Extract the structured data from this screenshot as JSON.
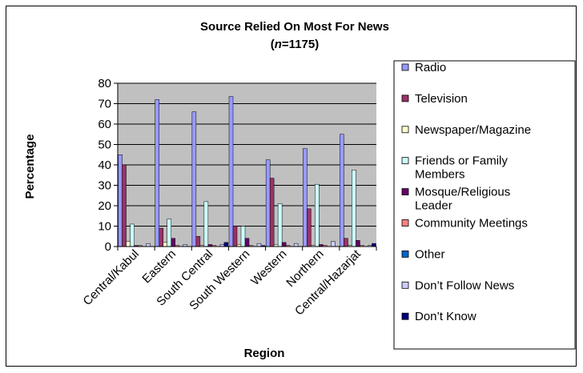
{
  "chart_data": {
    "type": "bar",
    "title": "Source Relied On Most For News",
    "subtitle_prefix": "n",
    "subtitle_suffix": "=1175",
    "xlabel": "Region",
    "ylabel": "Percentage",
    "ylim": [
      0,
      80
    ],
    "yticks": [
      0,
      10,
      20,
      30,
      40,
      50,
      60,
      70,
      80
    ],
    "grid": true,
    "legend_position": "right",
    "categories": [
      "Central/Kabul",
      "Eastern",
      "South Central",
      "South Western",
      "Western",
      "Northern",
      "Central/Hazarjat"
    ],
    "series": [
      {
        "name": "Radio",
        "color": "#9999ff",
        "values": [
          45,
          72,
          66,
          73.5,
          42.5,
          48,
          55
        ]
      },
      {
        "name": "Television",
        "color": "#993366",
        "values": [
          40,
          9,
          5,
          10,
          33.5,
          18.5,
          4
        ]
      },
      {
        "name": "Newspaper/Magazine",
        "color": "#ffffcc",
        "values": [
          2.5,
          2,
          0.5,
          1,
          1,
          0.5,
          0.5
        ]
      },
      {
        "name": "Friends or Family Members",
        "color": "#ccffff",
        "values": [
          11,
          13.5,
          22,
          10,
          21,
          30.5,
          37.5
        ]
      },
      {
        "name": "Mosque/Religious Leader",
        "color": "#660066",
        "values": [
          0.5,
          4,
          1,
          4,
          2,
          1,
          3
        ]
      },
      {
        "name": "Community Meetings",
        "color": "#ff8080",
        "values": [
          0.5,
          0.5,
          0.5,
          0.5,
          0.5,
          0.5,
          0.5
        ]
      },
      {
        "name": "Other",
        "color": "#0066cc",
        "values": [
          0,
          0,
          0,
          0,
          0,
          0,
          0
        ]
      },
      {
        "name": "Don’t Follow News",
        "color": "#ccccff",
        "values": [
          1.5,
          1,
          1,
          1.5,
          1.5,
          2.5,
          0.5
        ]
      },
      {
        "name": "Don’t Know",
        "color": "#000080",
        "values": [
          0,
          0,
          2,
          0.5,
          0,
          0,
          1.5
        ]
      }
    ]
  }
}
